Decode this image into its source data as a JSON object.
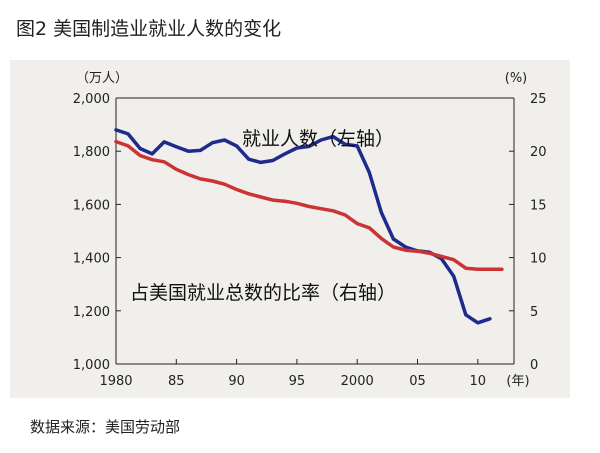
{
  "header": {
    "title": "图2 美国制造业就业人数的变化"
  },
  "footer": {
    "source": "数据来源：美国劳动部"
  },
  "chart_data": {
    "type": "line",
    "y_left_unit": "（万人）",
    "y_right_unit": "(%)",
    "x_unit": "(年)",
    "y_left_lim": [
      1000,
      2000
    ],
    "y_right_lim": [
      0,
      25
    ],
    "x_lim": [
      1980,
      2013
    ],
    "x_ticks": [
      {
        "value": 1980,
        "label": "1980"
      },
      {
        "value": 1985,
        "label": "85"
      },
      {
        "value": 1990,
        "label": "90"
      },
      {
        "value": 1995,
        "label": "95"
      },
      {
        "value": 2000,
        "label": "2000"
      },
      {
        "value": 2005,
        "label": "05"
      },
      {
        "value": 2010,
        "label": "10"
      }
    ],
    "y_left_ticks": [
      "1,000",
      "1,200",
      "1,400",
      "1,600",
      "1,800",
      "2,000"
    ],
    "y_right_ticks": [
      "0",
      "5",
      "10",
      "15",
      "20",
      "25"
    ],
    "annotations": {
      "employment": "就业人数（左轴）",
      "share": "占美国就业总数的比率（右轴）"
    },
    "series": [
      {
        "axis": "left",
        "color": "#1e2a8c",
        "points": [
          [
            1980,
            1880
          ],
          [
            1981,
            1865
          ],
          [
            1982,
            1810
          ],
          [
            1983,
            1790
          ],
          [
            1984,
            1835
          ],
          [
            1985,
            1817
          ],
          [
            1986,
            1800
          ],
          [
            1987,
            1803
          ],
          [
            1988,
            1832
          ],
          [
            1989,
            1842
          ],
          [
            1990,
            1820
          ],
          [
            1991,
            1770
          ],
          [
            1992,
            1758
          ],
          [
            1993,
            1765
          ],
          [
            1994,
            1790
          ],
          [
            1995,
            1812
          ],
          [
            1996,
            1818
          ],
          [
            1997,
            1842
          ],
          [
            1998,
            1855
          ],
          [
            1999,
            1826
          ],
          [
            2000,
            1820
          ],
          [
            2001,
            1720
          ],
          [
            2002,
            1570
          ],
          [
            2003,
            1470
          ],
          [
            2004,
            1440
          ],
          [
            2005,
            1425
          ],
          [
            2006,
            1420
          ],
          [
            2007,
            1395
          ],
          [
            2008,
            1330
          ],
          [
            2009,
            1185
          ],
          [
            2010,
            1155
          ],
          [
            2011,
            1170
          ]
        ]
      },
      {
        "axis": "right",
        "color": "#cc3333",
        "points": [
          [
            1980,
            20.9
          ],
          [
            1981,
            20.5
          ],
          [
            1982,
            19.6
          ],
          [
            1983,
            19.2
          ],
          [
            1984,
            19.0
          ],
          [
            1985,
            18.3
          ],
          [
            1986,
            17.8
          ],
          [
            1987,
            17.4
          ],
          [
            1988,
            17.2
          ],
          [
            1989,
            16.9
          ],
          [
            1990,
            16.4
          ],
          [
            1991,
            16.0
          ],
          [
            1992,
            15.7
          ],
          [
            1993,
            15.4
          ],
          [
            1994,
            15.3
          ],
          [
            1995,
            15.1
          ],
          [
            1996,
            14.8
          ],
          [
            1997,
            14.6
          ],
          [
            1998,
            14.4
          ],
          [
            1999,
            14.0
          ],
          [
            2000,
            13.2
          ],
          [
            2001,
            12.8
          ],
          [
            2002,
            11.8
          ],
          [
            2003,
            11.0
          ],
          [
            2004,
            10.7
          ],
          [
            2005,
            10.6
          ],
          [
            2006,
            10.4
          ],
          [
            2007,
            10.1
          ],
          [
            2008,
            9.8
          ],
          [
            2009,
            9.0
          ],
          [
            2010,
            8.9
          ],
          [
            2011,
            8.9
          ],
          [
            2012,
            8.9
          ]
        ]
      }
    ]
  }
}
